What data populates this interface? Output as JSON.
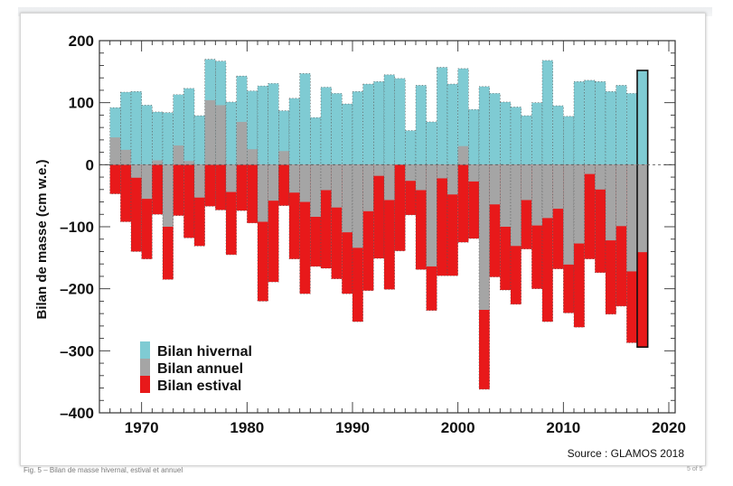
{
  "page": {
    "caption": "Fig. 5 – Bilan de masse hivernal, estival et annuel",
    "pager": "5 of 5",
    "source": "Source : GLAMOS 2018"
  },
  "chart_data": {
    "type": "bar",
    "title": "",
    "xlabel": "",
    "ylabel": "Bilan de masse  (cm w.e.)",
    "xlim": [
      1966,
      2020.6
    ],
    "ylim": [
      -400,
      200
    ],
    "xticks": [
      1970,
      1980,
      1990,
      2000,
      2010,
      2020
    ],
    "yticks": [
      200,
      100,
      0,
      -100,
      -200,
      -300,
      -400
    ],
    "ytick_labels": [
      "200",
      "100",
      "0",
      "–100",
      "–200",
      "–300",
      "–400"
    ],
    "grid": false,
    "legend_position": "bottom-left",
    "highlighted_year": 2017,
    "categories": [
      1967,
      1968,
      1969,
      1970,
      1971,
      1972,
      1973,
      1974,
      1975,
      1976,
      1977,
      1978,
      1979,
      1980,
      1981,
      1982,
      1983,
      1984,
      1985,
      1986,
      1987,
      1988,
      1989,
      1990,
      1991,
      1992,
      1993,
      1994,
      1995,
      1996,
      1997,
      1998,
      1999,
      2000,
      2001,
      2002,
      2003,
      2004,
      2005,
      2006,
      2007,
      2008,
      2009,
      2010,
      2011,
      2012,
      2013,
      2014,
      2015,
      2016,
      2017
    ],
    "series": [
      {
        "name": "Bilan hivernal",
        "color": "#7fcbd3",
        "values": [
          92,
          117,
          118,
          96,
          85,
          84,
          113,
          123,
          79,
          170,
          167,
          101,
          143,
          119,
          127,
          131,
          87,
          107,
          147,
          76,
          125,
          115,
          98,
          118,
          130,
          134,
          145,
          139,
          55,
          128,
          69,
          157,
          130,
          155,
          89,
          126,
          115,
          101,
          93,
          79,
          100,
          168,
          95,
          78,
          134,
          136,
          134,
          118,
          128,
          115,
          152
        ]
      },
      {
        "name": "Bilan annuel",
        "color": "#a5a5a5",
        "values": [
          44,
          24,
          -21,
          -55,
          7,
          -100,
          31,
          6,
          -53,
          104,
          96,
          -44,
          69,
          25,
          -92,
          -58,
          22,
          -45,
          -60,
          -84,
          -41,
          -69,
          -109,
          -134,
          -75,
          -18,
          -57,
          0,
          -26,
          -41,
          -164,
          -22,
          -48,
          30,
          -27,
          -234,
          -64,
          -100,
          -131,
          -57,
          -98,
          -86,
          -71,
          -161,
          -127,
          -15,
          -40,
          -122,
          -99,
          -172,
          -141
        ]
      },
      {
        "name": "Bilan estival",
        "color": "#e8191a",
        "values": [
          -47,
          -92,
          -140,
          -152,
          -80,
          -185,
          -82,
          -118,
          -131,
          -67,
          -73,
          -145,
          -74,
          -94,
          -220,
          -189,
          -66,
          -152,
          -208,
          -164,
          -167,
          -184,
          -208,
          -253,
          -203,
          -151,
          -201,
          -139,
          -81,
          -169,
          -235,
          -179,
          -179,
          -125,
          -119,
          -362,
          -181,
          -202,
          -225,
          -136,
          -200,
          -253,
          -168,
          -239,
          -262,
          -152,
          -174,
          -241,
          -228,
          -287,
          -294
        ]
      }
    ]
  }
}
